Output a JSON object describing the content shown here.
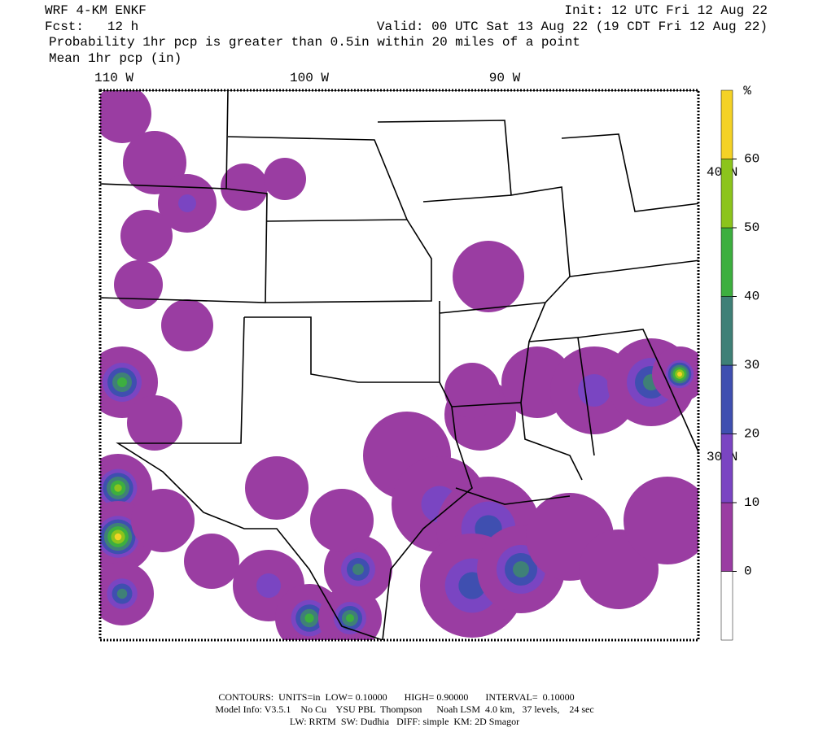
{
  "header": {
    "model": "WRF 4-KM ENKF",
    "forecast": "Fcst:   12 h",
    "init": "Init: 12 UTC Fri 12 Aug 22",
    "valid": "Valid: 00 UTC Sat 13 Aug 22 (19 CDT Fri 12 Aug 22)",
    "field": "Probability 1hr pcp is greater than 0.5in within 20 miles of a point",
    "overlay": "Mean 1hr pcp (in)"
  },
  "map": {
    "lon_labels": [
      "110 W",
      "100 W",
      "90 W"
    ],
    "lat_labels": [
      "40 N",
      "30 N"
    ]
  },
  "colorbar": {
    "label": "%",
    "levels": [
      0,
      10,
      20,
      30,
      40,
      50,
      60
    ],
    "colors": [
      "#ffffff",
      "#9a3da2",
      "#7a45c2",
      "#3f4fb0",
      "#3f8077",
      "#3daf3f",
      "#8cc41c",
      "#f4d226"
    ]
  },
  "footer": {
    "line1": "CONTOURS:  UNITS=in  LOW= 0.10000       HIGH= 0.90000       INTERVAL=  0.10000",
    "line2": "Model Info: V3.5.1    No Cu    YSU PBL  Thompson      Noah LSM  4.0 km,   37 levels,    24 sec",
    "line3": "LW: RRTM  SW: Dudhia   DIFF: simple  KM: 2D Smagor"
  }
}
